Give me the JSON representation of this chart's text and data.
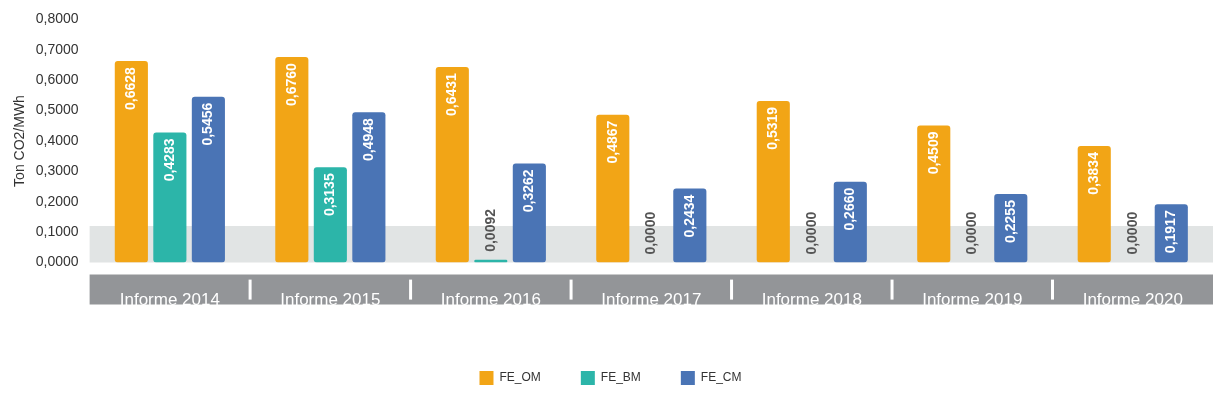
{
  "chart_data": {
    "type": "bar",
    "ylabel": "Ton CO2/MWh",
    "categories": [
      "Informe 2014",
      "Informe 2015",
      "Informe 2016",
      "Informe 2017",
      "Informe 2018",
      "Informe 2019",
      "Informe 2020"
    ],
    "series": [
      {
        "name": "FE_OM",
        "color": "#f2a516",
        "values": [
          0.6628,
          0.676,
          0.6431,
          0.4867,
          0.5319,
          0.4509,
          0.3834
        ],
        "value_labels": [
          "0,6628",
          "0,6760",
          "0,6431",
          "0,4867",
          "0,5319",
          "0,4509",
          "0,3834"
        ]
      },
      {
        "name": "FE_BM",
        "color": "#2cb5a9",
        "values": [
          0.4283,
          0.3135,
          0.0092,
          0,
          0,
          0,
          0
        ],
        "value_labels": [
          "0,4283",
          "0,3135",
          "0,0092",
          "0,0000",
          "0,0000",
          "0,0000",
          "0,0000"
        ]
      },
      {
        "name": "FE_CM",
        "color": "#4a74b5",
        "values": [
          0.5456,
          0.4948,
          0.3262,
          0.2434,
          0.266,
          0.2255,
          0.1917
        ],
        "value_labels": [
          "0,5456",
          "0,4948",
          "0,3262",
          "0,2434",
          "0,2660",
          "0,2255",
          "0,1917"
        ]
      }
    ],
    "ylim": [
      0,
      0.8
    ],
    "yticks": [
      {
        "value": 0,
        "label": "0,0000"
      },
      {
        "value": 0.1,
        "label": "0,1000"
      },
      {
        "value": 0.2,
        "label": "0,2000"
      },
      {
        "value": 0.3,
        "label": "0,3000"
      },
      {
        "value": 0.4,
        "label": "0,4000"
      },
      {
        "value": 0.5,
        "label": "0,5000"
      },
      {
        "value": 0.6,
        "label": "0,6000"
      },
      {
        "value": 0.7,
        "label": "0,7000"
      },
      {
        "value": 0.8,
        "label": "0,8000"
      }
    ],
    "bands": [
      {
        "axis": "y",
        "from": 0,
        "to": 0.12,
        "color": "#e1e4e4"
      }
    ],
    "grid": false,
    "legend": "bottom"
  }
}
